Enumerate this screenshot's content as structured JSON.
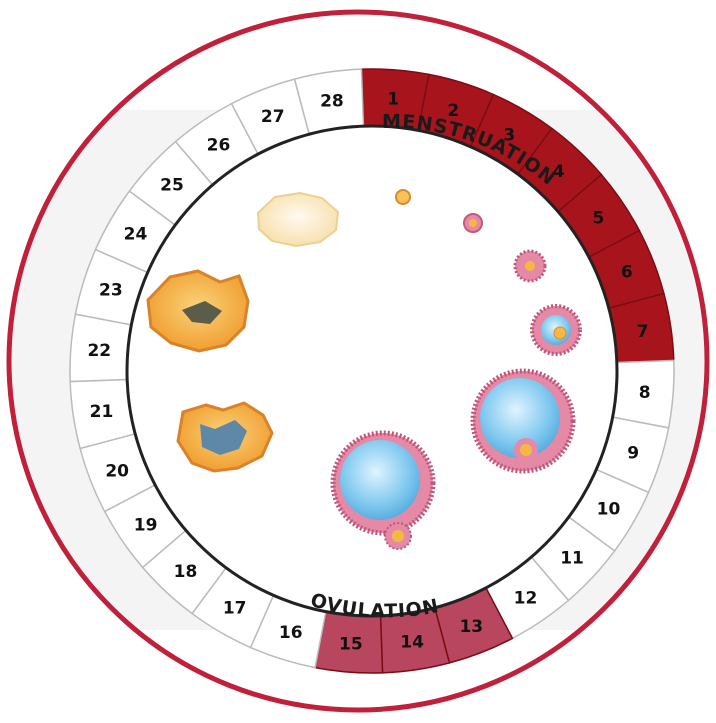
{
  "diagram": {
    "days": [
      {
        "n": "1",
        "phase": "menstruation"
      },
      {
        "n": "2",
        "phase": "menstruation"
      },
      {
        "n": "3",
        "phase": "menstruation"
      },
      {
        "n": "4",
        "phase": "menstruation"
      },
      {
        "n": "5",
        "phase": "menstruation"
      },
      {
        "n": "6",
        "phase": "menstruation"
      },
      {
        "n": "7",
        "phase": "menstruation"
      },
      {
        "n": "8",
        "phase": "none"
      },
      {
        "n": "9",
        "phase": "none"
      },
      {
        "n": "10",
        "phase": "none"
      },
      {
        "n": "11",
        "phase": "none"
      },
      {
        "n": "12",
        "phase": "none"
      },
      {
        "n": "13",
        "phase": "ovulation"
      },
      {
        "n": "14",
        "phase": "ovulation"
      },
      {
        "n": "15",
        "phase": "ovulation"
      },
      {
        "n": "16",
        "phase": "none"
      },
      {
        "n": "17",
        "phase": "none"
      },
      {
        "n": "18",
        "phase": "none"
      },
      {
        "n": "19",
        "phase": "none"
      },
      {
        "n": "20",
        "phase": "none"
      },
      {
        "n": "21",
        "phase": "none"
      },
      {
        "n": "22",
        "phase": "none"
      },
      {
        "n": "23",
        "phase": "none"
      },
      {
        "n": "24",
        "phase": "none"
      },
      {
        "n": "25",
        "phase": "none"
      },
      {
        "n": "26",
        "phase": "none"
      },
      {
        "n": "27",
        "phase": "none"
      },
      {
        "n": "28",
        "phase": "none"
      }
    ],
    "menstruation_label": "MENSTRUATION",
    "ovulation_label": "OVULATION"
  },
  "colors": {
    "border": "#c0203a",
    "menstruation": "#a8141c",
    "ovulation": "#b8465f",
    "corpus_luteum": "#f2a83a",
    "follicle_fluid": "#7fc8ef"
  }
}
